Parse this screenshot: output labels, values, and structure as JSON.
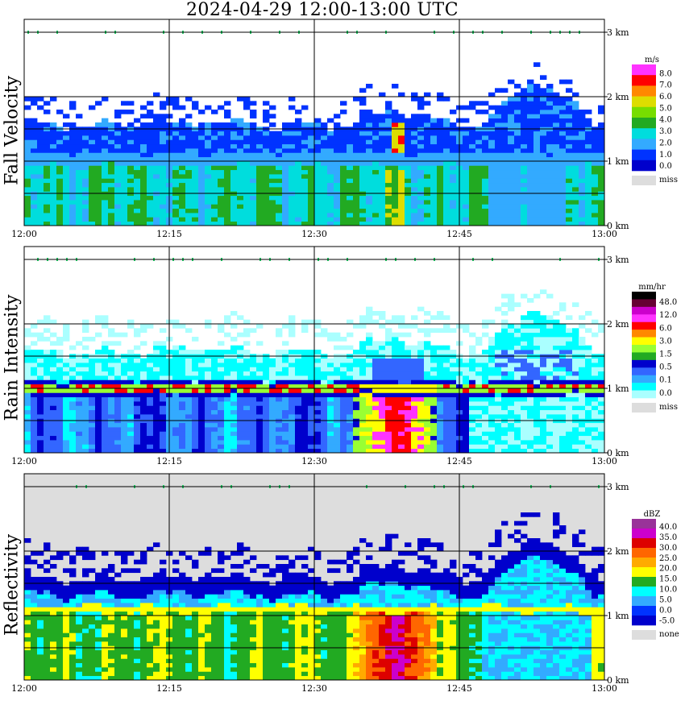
{
  "title": "2024-04-29   12:00-13:00 UTC",
  "time_ticks": [
    "12:00",
    "12:15",
    "12:30",
    "12:45",
    "13:00"
  ],
  "height_ticks": [
    "0 km",
    "1 km",
    "2 km",
    "3 km"
  ],
  "chart_data": [
    {
      "type": "heatmap",
      "panel": "fall-velocity",
      "title": "",
      "ylabel": "Fall Velocity",
      "xlabel": "",
      "x_range": [
        "12:00",
        "13:00"
      ],
      "y_range_km": [
        0,
        3.2
      ],
      "colorbar": {
        "unit": "m/s",
        "labels": [
          "8.0",
          "7.0",
          "6.0",
          "5.0",
          "4.0",
          "3.0",
          "2.0",
          "1.0",
          "0.0"
        ],
        "colors": [
          "#ff33ff",
          "#ff0000",
          "#ff8800",
          "#dddd00",
          "#77dd00",
          "#22aa22",
          "#00dddd",
          "#33aaff",
          "#0033ff",
          "#0000cc"
        ],
        "missing_label": "miss",
        "missing_color": "#dddddd"
      }
    },
    {
      "type": "heatmap",
      "panel": "rain-intensity",
      "title": "",
      "ylabel": "Rain Intensity",
      "xlabel": "",
      "x_range": [
        "12:00",
        "13:00"
      ],
      "y_range_km": [
        0,
        3.2
      ],
      "colorbar": {
        "unit": "mm/hr",
        "labels": [
          "48.0",
          "12.0",
          "6.0",
          "3.0",
          "1.5",
          "0.5",
          "0.1",
          "0.0"
        ],
        "colors": [
          "#000000",
          "#660033",
          "#cc00cc",
          "#ff33ff",
          "#ff0000",
          "#ff8800",
          "#ffff00",
          "#99ff33",
          "#22aa22",
          "#0000cc",
          "#3366ff",
          "#33aaff",
          "#00ffff",
          "#aaffff"
        ],
        "missing_label": "miss",
        "missing_color": "#dddddd"
      }
    },
    {
      "type": "heatmap",
      "panel": "reflectivity",
      "title": "",
      "ylabel": "Reflectivity",
      "xlabel": "",
      "x_range": [
        "12:00",
        "13:00"
      ],
      "y_range_km": [
        0,
        3.2
      ],
      "colorbar": {
        "unit": "dBZ",
        "labels": [
          "40.0",
          "35.0",
          "30.0",
          "25.0",
          "20.0",
          "15.0",
          "10.0",
          "5.0",
          "0.0",
          "-5.0"
        ],
        "colors": [
          "#993399",
          "#cc00cc",
          "#dd0000",
          "#ff6600",
          "#ffaa00",
          "#ffff00",
          "#22aa22",
          "#00ffff",
          "#33aaff",
          "#0033ff",
          "#0000cc"
        ],
        "missing_label": "none",
        "missing_color": "#dddddd"
      }
    }
  ]
}
